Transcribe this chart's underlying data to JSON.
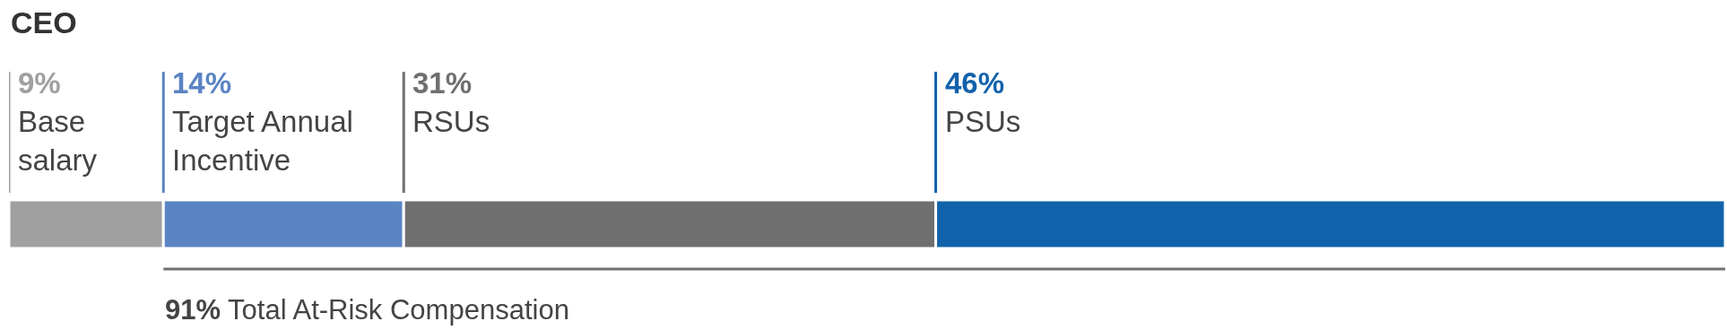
{
  "chart_data": {
    "type": "bar",
    "orientation": "horizontal",
    "stacked": true,
    "title": "CEO",
    "categories": [
      null
    ],
    "xlim": [
      0,
      100
    ],
    "tick_labels": false,
    "legend": false,
    "series": [
      {
        "name": "Base\nsalary",
        "color": "#a0a0a0",
        "values": [
          9
        ],
        "value_labels": [
          "9%"
        ]
      },
      {
        "name": "Target Annual\nIncentive",
        "color": "#5b84c4",
        "values": [
          14
        ],
        "value_labels": [
          "14%"
        ]
      },
      {
        "name": "RSUs",
        "color": "#6f6f6f",
        "values": [
          31
        ],
        "value_labels": [
          "31%"
        ]
      },
      {
        "name": "PSUs",
        "color": "#1162ab",
        "values": [
          46
        ],
        "value_labels": [
          "46%"
        ]
      }
    ],
    "annotations": [
      "91% Total At-Risk Compensation"
    ]
  }
}
